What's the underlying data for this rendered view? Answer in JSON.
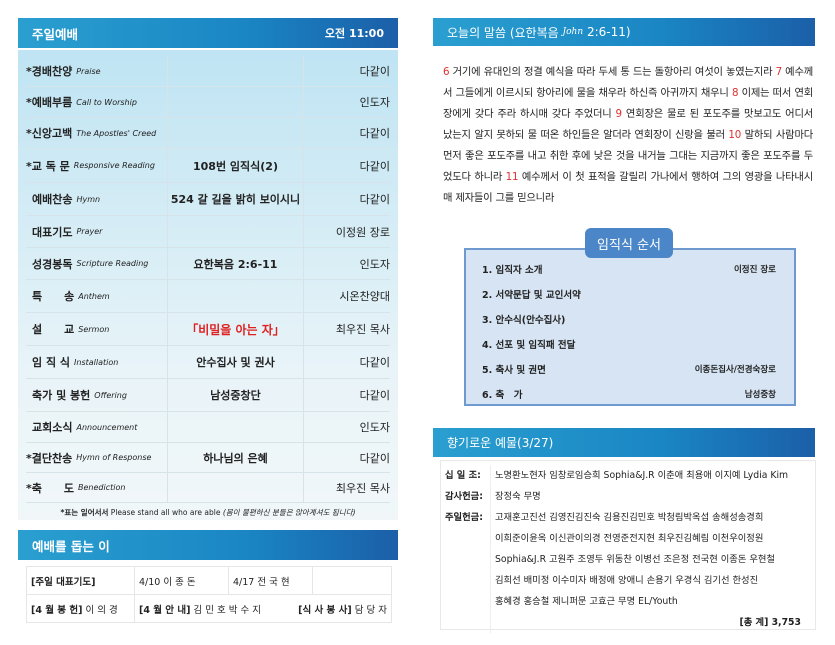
{
  "worship": {
    "title": "주일예배",
    "time": "오전 11:00",
    "items": [
      {
        "ko": "*경배찬양",
        "en": "Praise",
        "center": "",
        "right": "다같이"
      },
      {
        "ko": "*예배부름",
        "en": "Call to Worship",
        "center": "",
        "right": "인도자"
      },
      {
        "ko": "*신앙고백",
        "en": "The Apostles' Creed",
        "center": "",
        "right": "다같이"
      },
      {
        "ko": "*교 독 문",
        "en": "Responsive Reading",
        "center": "108번 임직식(2)",
        "right": "다같이"
      },
      {
        "ko": "예배찬송",
        "en": "Hymn",
        "center": "524 갈 길을 밝히 보이시니",
        "right": "다같이"
      },
      {
        "ko": "대표기도",
        "en": "Prayer",
        "center": "",
        "right": "이정원 장로"
      },
      {
        "ko": "성경봉독",
        "en": "Scripture Reading",
        "center": "요한복음 2:6-11",
        "right": "인도자"
      },
      {
        "ko": "특　　송",
        "en": "Anthem",
        "center": "",
        "right": "시온찬양대"
      },
      {
        "ko": "설　　교",
        "en": "Sermon",
        "center": "「비밀을 아는 자」",
        "right": "최우진 목사",
        "highlight": true
      },
      {
        "ko": "임 직 식",
        "en": "Installation",
        "center": "안수집사 및 권사",
        "right": "다같이"
      },
      {
        "ko": "축가 및 봉헌",
        "en": "Offering",
        "center": "남성중창단",
        "right": "다같이"
      },
      {
        "ko": "교회소식",
        "en": "Announcement",
        "center": "",
        "right": "인도자"
      },
      {
        "ko": "*결단찬송",
        "en": "Hymn of Response",
        "center": "하나님의 은혜",
        "right": "다같이"
      },
      {
        "ko": "*축　　도",
        "en": "Benediction",
        "center": "",
        "right": "최우진 목사"
      }
    ],
    "note_bold": "*표는 일어서서",
    "note_en": "Please stand all who are able",
    "note_it": "(몸이 불편하신 분들은 앉아계셔도 됩니다)",
    "accent": "#1a86c4",
    "sermon_color": "#e02020"
  },
  "helpers": {
    "title": "예배를 돕는 이",
    "r1": [
      "[주일 대표기도]",
      "4/10  이 종 돈",
      "4/17  전 국 현",
      ""
    ],
    "r2": {
      "a_label": "[4 월 봉 헌]",
      "a_val": "이 의 경",
      "b_label": "[4 월 안 내]",
      "b_val": "김 민 호  박 수 지",
      "c_label": "[식 사 봉 사]",
      "c_val": "담 당 자"
    }
  },
  "word": {
    "title": "오늘의 말씀 (요한복음",
    "title_script": "John",
    "title_ref": "2:6-11)",
    "segments": [
      {
        "v": "6"
      },
      {
        "t": " 거기에 유대인의 정결 예식을 따라 두세 통 드는 돌항아리 여섯이 놓였는지라 "
      },
      {
        "v": "7"
      },
      {
        "t": " 예수께서 그들에게 이르시되 항아리에 물을 채우라 하신즉 아귀까지 채우니 "
      },
      {
        "v": "8"
      },
      {
        "t": " 이제는 떠서 연회장에게 갖다 주라 하시매 갖다 주었더니 "
      },
      {
        "v": "9"
      },
      {
        "t": " 연회장은 물로 된 포도주를 맛보고도 어디서 났는지 알지 못하되 물 떠온 하인들은 알더라 연회장이 신랑을 불러 "
      },
      {
        "v": "10"
      },
      {
        "t": " 말하되 사람마다 먼저 좋은 포도주를 내고 취한 후에 낮은 것을 내거늘 그대는 지금까지 좋은 포도주를 두었도다 하니라 "
      },
      {
        "v": "11"
      },
      {
        "t": " 예수께서 이 첫 표적을 갈릴리 가나에서 행하여 그의 영광을 나타내시매 제자들이 그를 믿으니라"
      }
    ]
  },
  "installation": {
    "title": "임직식 순서",
    "items": [
      {
        "l": "1. 임직자 소개",
        "r": "이정진 장로"
      },
      {
        "l": "2. 서약문답 및 교인서약",
        "r": ""
      },
      {
        "l": "3. 안수식(안수집사)",
        "r": ""
      },
      {
        "l": "4. 선포 및 임직패 전달",
        "r": ""
      },
      {
        "l": "5. 축사 및 권면",
        "r": "이종돈집사/전경숙장로"
      },
      {
        "l": "6. 축　가",
        "r": "남성중창"
      }
    ]
  },
  "offering": {
    "title": "향기로운 예물(3/27)",
    "rows": [
      {
        "k": "십 일 조:",
        "v": [
          "노명환노현자 임창로임승희 Sophia&J.R 이춘애 최용애 이지예 Lydia Kim"
        ]
      },
      {
        "k": "감사헌금:",
        "v": [
          "장정숙 무명"
        ]
      },
      {
        "k": "주일헌금:",
        "v": [
          "고재훈고진선 김영진김진숙 김용진김민호 박청림박옥섭 송해성송경희",
          "이희준이윤옥 이신관이의경 전영준전지현 최우진김혜림 이천우이정원",
          "Sophia&J.R 고원주 조영두 위동찬 이병선 조은정 전국현 이종돈 우현철",
          "김희선 배미정 이수미자 배정애 양애니 손용기 우경식 김기선 한성진",
          "홍혜경 홍승철 제니퍼문 고효근 무명 EL/Youth"
        ]
      }
    ],
    "total_label": "[총 계]",
    "total": "3,753"
  }
}
